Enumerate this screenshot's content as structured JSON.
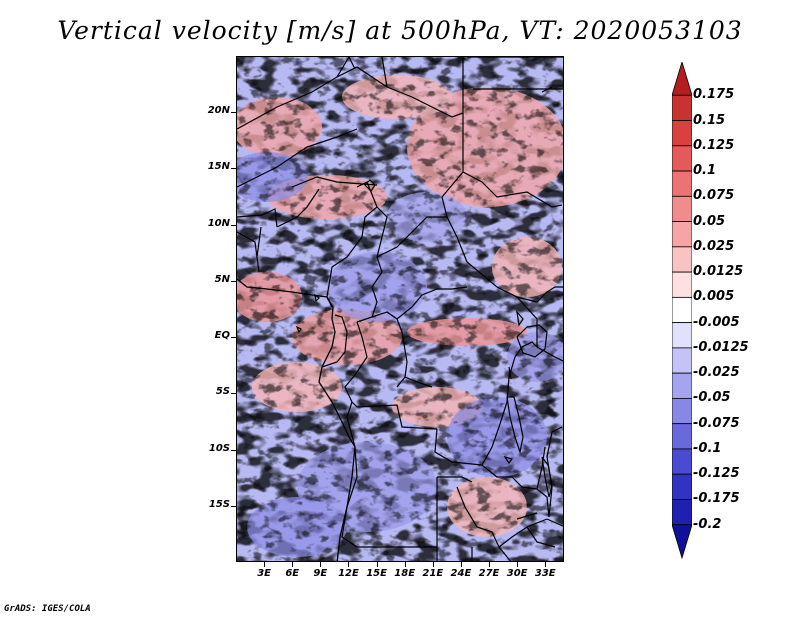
{
  "title": "Vertical velocity [m/s] at 500hPa, VT: 2020053103",
  "footer": "GrADS: IGES/COLA",
  "latitude_labels": [
    "20N",
    "15N",
    "10N",
    "5N",
    "EQ",
    "5S",
    "10S",
    "15S"
  ],
  "longitude_labels": [
    "3E",
    "6E",
    "9E",
    "12E",
    "15E",
    "18E",
    "21E",
    "24E",
    "27E",
    "30E",
    "33E"
  ],
  "colorbar": {
    "labels": [
      "0.175",
      "0.15",
      "0.125",
      "0.1",
      "0.075",
      "0.05",
      "0.025",
      "0.0125",
      "0.005",
      "-0.005",
      "-0.0125",
      "-0.025",
      "-0.05",
      "-0.075",
      "-0.1",
      "-0.125",
      "-0.175",
      "-0.2"
    ],
    "colors": [
      "#b41e1e",
      "#c83232",
      "#d94141",
      "#e25a5a",
      "#ea7373",
      "#f08c8c",
      "#f5a5a5",
      "#f9c3c3",
      "#fde1e1",
      "#ffffff",
      "#e1e1fb",
      "#c3c3f5",
      "#a5a5ef",
      "#8787e6",
      "#6969dc",
      "#4b4bd2",
      "#3232c3",
      "#2020b0",
      "#101099"
    ]
  },
  "chart_data": {
    "type": "heatmap",
    "title": "Vertical velocity [m/s] at 500hPa, VT: 2020053103",
    "variable": "Vertical velocity",
    "units": "m/s",
    "level": "500hPa",
    "valid_time": "2020053103",
    "lon_range": [
      0,
      35
    ],
    "lat_range": [
      -20,
      25
    ],
    "x_ticks": [
      "3E",
      "6E",
      "9E",
      "12E",
      "15E",
      "18E",
      "21E",
      "24E",
      "27E",
      "30E",
      "33E"
    ],
    "y_ticks": [
      "20N",
      "15N",
      "10N",
      "5N",
      "EQ",
      "5S",
      "10S",
      "15S"
    ],
    "levels": [
      -0.2,
      -0.175,
      -0.125,
      -0.1,
      -0.075,
      -0.05,
      -0.025,
      -0.0125,
      -0.005,
      0.005,
      0.0125,
      0.025,
      0.05,
      0.075,
      0.1,
      0.125,
      0.15,
      0.175
    ]
  }
}
